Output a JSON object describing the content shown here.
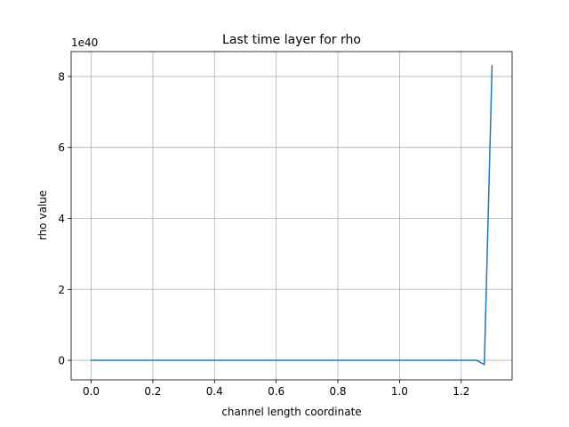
{
  "chart_data": {
    "type": "line",
    "title": "Last time layer for rho",
    "xlabel": "channel length coordinate",
    "ylabel": "rho value",
    "y_offset_label": "1e40",
    "xlim": [
      -0.065,
      1.365
    ],
    "ylim": [
      -0.55,
      8.7
    ],
    "y_scale_factor": 1e+40,
    "xticks": [
      0.0,
      0.2,
      0.4,
      0.6,
      0.8,
      1.0,
      1.2
    ],
    "xtick_labels": [
      "0.0",
      "0.2",
      "0.4",
      "0.6",
      "0.8",
      "1.0",
      "1.2"
    ],
    "yticks": [
      0,
      2,
      4,
      6,
      8
    ],
    "ytick_labels": [
      "0",
      "2",
      "4",
      "6",
      "8"
    ],
    "grid": true,
    "series": [
      {
        "color": "#1f77b4",
        "x": [
          0.0,
          0.2,
          0.4,
          0.6,
          0.8,
          1.0,
          1.2,
          1.25,
          1.275,
          1.3
        ],
        "y": [
          0,
          0,
          0,
          0,
          0,
          0,
          0,
          0,
          -0.12,
          8.3
        ]
      }
    ]
  }
}
